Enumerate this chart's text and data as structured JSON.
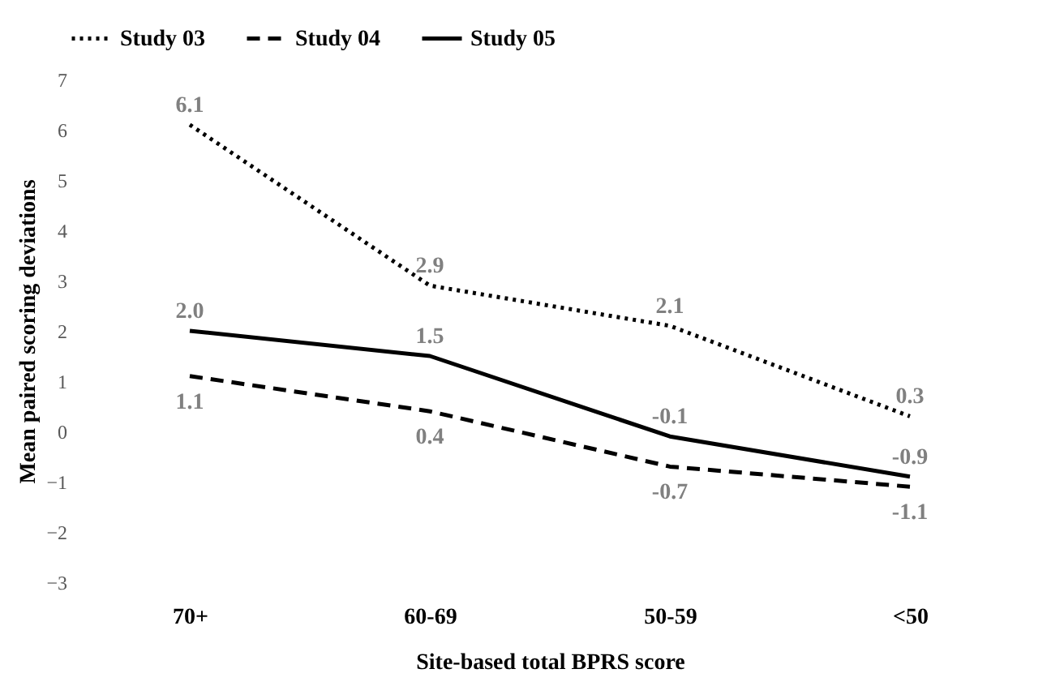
{
  "chart_data": {
    "type": "line",
    "xlabel": "Site-based total BPRS score",
    "ylabel": "Mean paired scoring deviations",
    "categories": [
      "70+",
      "60-69",
      "50-59",
      "<50"
    ],
    "series": [
      {
        "name": "Study 03",
        "color": "#000000",
        "line_style": "dotted",
        "values": [
          6.1,
          2.9,
          2.1,
          0.3
        ],
        "value_labels": [
          "6.1",
          "2.9",
          "2.1",
          "0.3"
        ]
      },
      {
        "name": "Study 04",
        "color": "#000000",
        "line_style": "dashed",
        "values": [
          1.1,
          0.4,
          -0.7,
          -1.1
        ],
        "value_labels": [
          "1.1",
          "0.4",
          "-0.7",
          "-1.1"
        ]
      },
      {
        "name": "Study 05",
        "color": "#000000",
        "line_style": "solid",
        "values": [
          2.0,
          1.5,
          -0.1,
          -0.9
        ],
        "value_labels": [
          "2.0",
          "1.5",
          "-0.1",
          "-0.9"
        ]
      }
    ],
    "ylim": [
      -3,
      7
    ],
    "yticks": [
      -3,
      -2,
      -1,
      0,
      1,
      2,
      3,
      4,
      5,
      6,
      7
    ],
    "grid": false,
    "legend": "top",
    "data_labels": true,
    "marker": "none"
  }
}
